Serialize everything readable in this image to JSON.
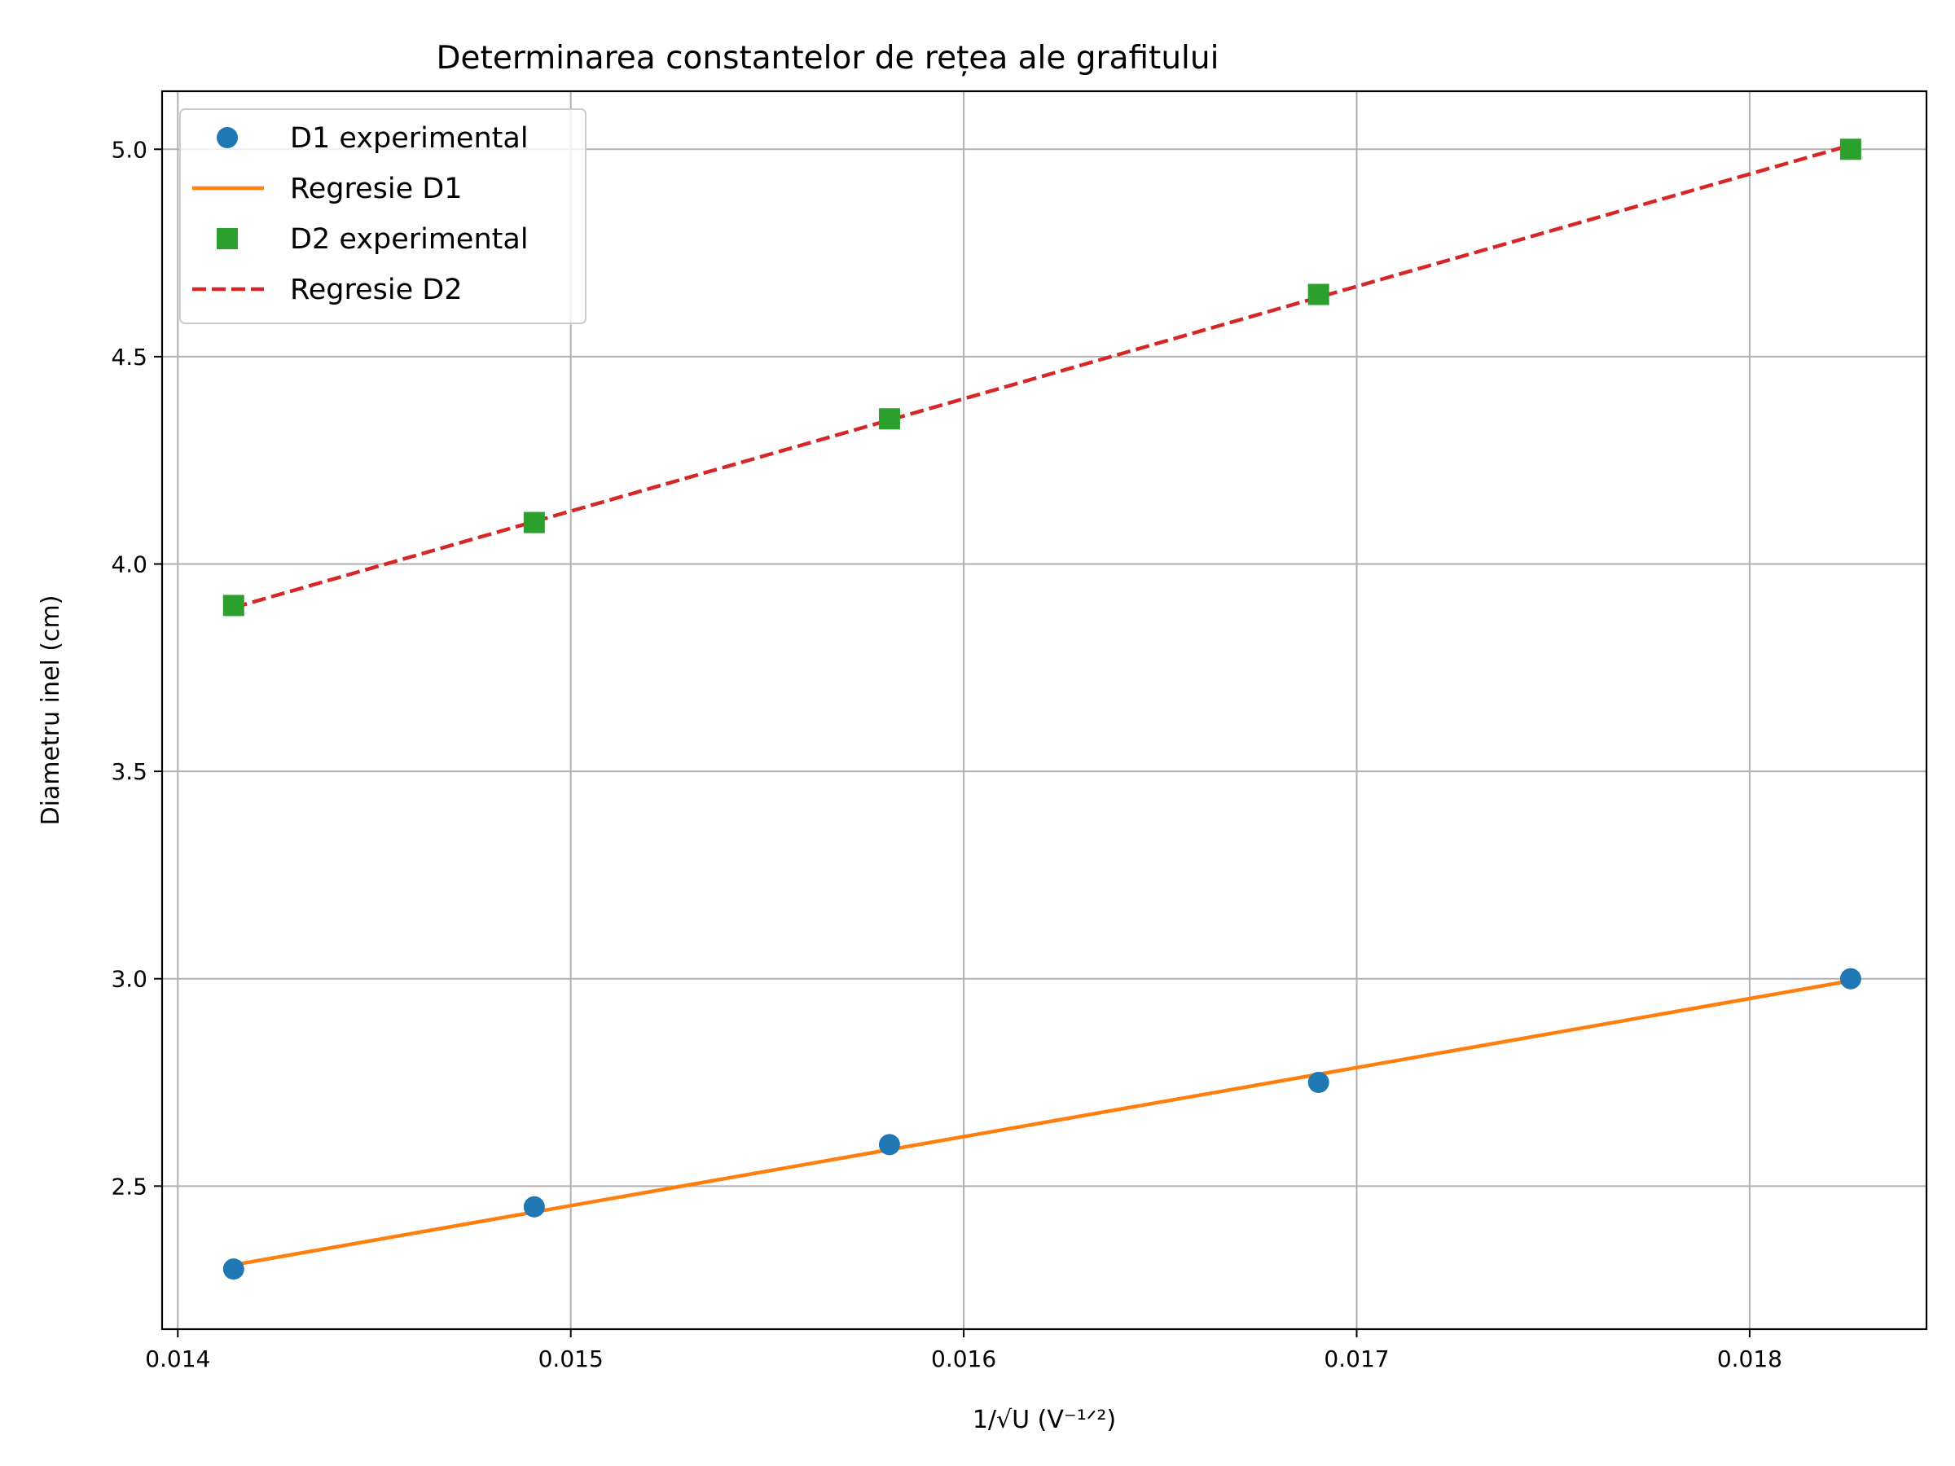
{
  "chart_data": {
    "type": "scatter",
    "title": "Determinarea constantelor de rețea ale grafitului",
    "xlabel": "1/√U (V⁻¹ᐟ²)",
    "ylabel": "Diametru inel (cm)",
    "xlim": [
      0.01396,
      0.01845
    ],
    "ylim": [
      2.155,
      5.14
    ],
    "xticks": [
      0.014,
      0.015,
      0.016,
      0.017,
      0.018
    ],
    "xtick_labels": [
      "0.014",
      "0.015",
      "0.016",
      "0.017",
      "0.018"
    ],
    "yticks": [
      2.5,
      3.0,
      3.5,
      4.0,
      4.5,
      5.0
    ],
    "ytick_labels": [
      "2.5",
      "3.0",
      "3.5",
      "4.0",
      "4.5",
      "5.0"
    ],
    "grid": true,
    "legend_position": "upper-left",
    "series": [
      {
        "name": "D1 experimental",
        "kind": "points",
        "marker": "circle",
        "color": "#1f77b4",
        "x": [
          0.014142,
          0.014907,
          0.015811,
          0.016903,
          0.018257
        ],
        "y": [
          2.3,
          2.45,
          2.6,
          2.75,
          3.0
        ]
      },
      {
        "name": "Regresie D1",
        "kind": "line",
        "style": "solid",
        "color": "#ff7f0e",
        "x": [
          0.014142,
          0.018257
        ],
        "y": [
          2.31,
          2.995
        ]
      },
      {
        "name": "D2 experimental",
        "kind": "points",
        "marker": "square",
        "color": "#2ca02c",
        "x": [
          0.014142,
          0.014907,
          0.015811,
          0.016903,
          0.018257
        ],
        "y": [
          3.9,
          4.1,
          4.35,
          4.65,
          5.0
        ]
      },
      {
        "name": "Regresie D2",
        "kind": "line",
        "style": "dashed",
        "color": "#d62728",
        "x": [
          0.014142,
          0.018257
        ],
        "y": [
          3.895,
          5.01
        ]
      }
    ]
  }
}
